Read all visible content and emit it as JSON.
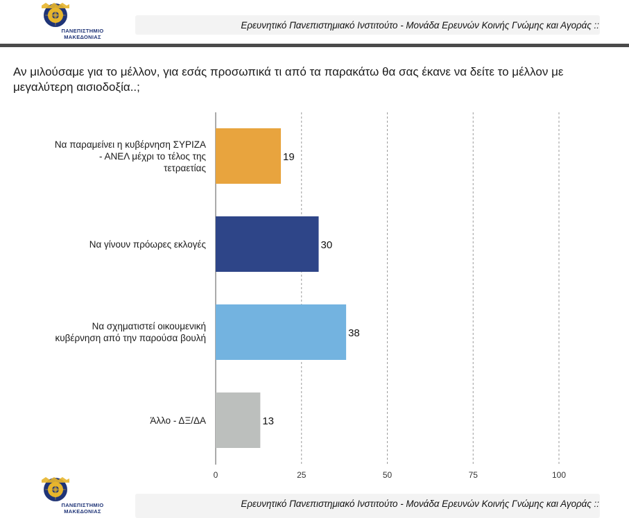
{
  "header": {
    "institution_line": "Ερευνητικό Πανεπιστημιακό Ινστιτούτο - Μονάδα Ερευνών Κοινής Γνώμης και Αγοράς ::",
    "logo_name_line1": "ΠΑΝΕΠΙΣΤΗΜΙΟ",
    "logo_name_line2": "ΜΑΚΕΔΟΝΙΑΣ"
  },
  "footer": {
    "institution_line": "Ερευνητικό Πανεπιστημιακό Ινστιτούτο - Μονάδα Ερευνών Κοινής Γνώμης και Αγοράς ::",
    "logo_name_line1": "ΠΑΝΕΠΙΣΤΗΜΙΟ",
    "logo_name_line2": "ΜΑΚΕΔΟΝΙΑΣ"
  },
  "question": "Αν μιλούσαμε για το μέλλον, για εσάς προσωπικά τι από τα παρακάτω θα σας έκανε να δείτε το μέλλον με μεγαλύτερη αισιοδοξία..;",
  "colors": {
    "bar1": "#e8a43e",
    "bar2": "#2e4588",
    "bar3": "#73b3e0",
    "bar4": "#bcbfbd",
    "logo_blue": "#1f3477",
    "logo_gold": "#e7b52c"
  },
  "chart_data": {
    "type": "bar",
    "orientation": "horizontal",
    "categories": [
      "Να παραμείνει η κυβέρνηση ΣΥΡΙΖΑ - ΑΝΕΛ μέχρι το τέλος της τετραετίας",
      "Να γίνουν πρόωρες εκλογές",
      "Να σχηματιστεί οικουμενική κυβέρνηση από την παρούσα βουλή",
      "Άλλο - ΔΞ/ΔΑ"
    ],
    "category_lines": [
      [
        "Να παραμείνει η κυβέρνηση ΣΥΡΙΖΑ",
        "- ΑΝΕΛ μέχρι το τέλος της",
        "τετραετίας"
      ],
      [
        "Να γίνουν πρόωρες εκλογές"
      ],
      [
        "Να σχηματιστεί οικουμενική",
        "κυβέρνηση από την παρούσα βουλή"
      ],
      [
        "Άλλο - ΔΞ/ΔΑ"
      ]
    ],
    "values": [
      19,
      30,
      38,
      13
    ],
    "data_labels": [
      "19",
      "30",
      "38",
      "13"
    ],
    "xlim": [
      0,
      100
    ],
    "xticks": [
      0,
      25,
      50,
      75,
      100
    ],
    "xtick_labels": [
      "0",
      "25",
      "50",
      "75",
      "100"
    ],
    "grid": "vertical dashed",
    "title": "",
    "xlabel": "",
    "ylabel": ""
  }
}
